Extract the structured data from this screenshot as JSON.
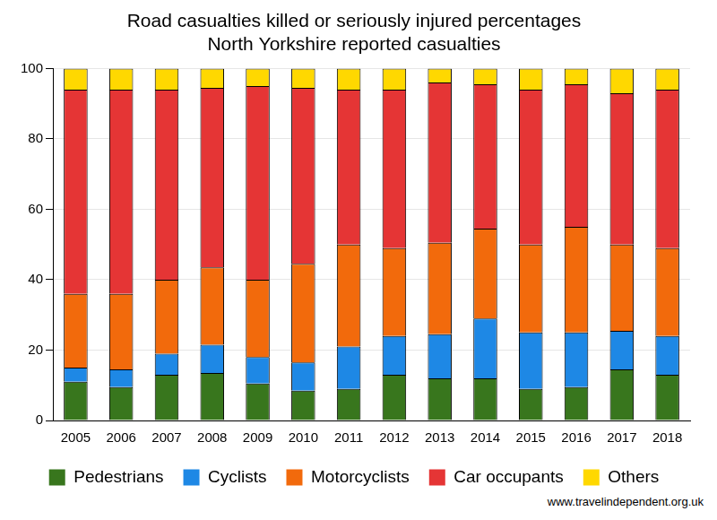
{
  "chart_data": {
    "type": "bar",
    "title": [
      "Road casualties killed or seriously injured percentages",
      "North Yorkshire reported casualties"
    ],
    "source": "www.travelindependent.org.uk",
    "categories": [
      "2005",
      "2006",
      "2007",
      "2008",
      "2009",
      "2010",
      "2011",
      "2012",
      "2013",
      "2014",
      "2015",
      "2016",
      "2017",
      "2018"
    ],
    "series": [
      {
        "name": "Pedestrians",
        "color": "#38761d",
        "values": [
          11,
          9.5,
          13,
          13.5,
          10.5,
          8.5,
          9,
          13,
          12,
          12,
          9,
          9.5,
          14.5,
          13
        ]
      },
      {
        "name": "Cyclists",
        "color": "#1e88e5",
        "values": [
          4,
          5,
          6,
          8,
          7.5,
          8,
          12,
          11,
          12.5,
          17,
          16,
          15.5,
          11,
          11
        ]
      },
      {
        "name": "Motorcyclists",
        "color": "#f26a0c",
        "values": [
          21,
          21.5,
          21,
          22,
          22,
          28,
          29,
          25,
          26,
          25.5,
          25,
          30,
          24.5,
          25
        ]
      },
      {
        "name": "Car occupants",
        "color": "#e53535",
        "values": [
          58,
          58,
          54,
          51,
          55,
          50,
          44,
          45,
          45.5,
          41,
          44,
          40.5,
          43,
          45
        ]
      },
      {
        "name": "Others",
        "color": "#ffd800",
        "values": [
          6,
          6,
          6,
          5.5,
          5,
          5.5,
          6,
          6,
          4,
          4.5,
          6,
          4.5,
          7,
          6
        ]
      }
    ],
    "stacked": true,
    "ylim": [
      0,
      100
    ],
    "yticks": [
      0,
      20,
      40,
      60,
      80,
      100
    ],
    "grid": true,
    "legend": "bottom"
  }
}
